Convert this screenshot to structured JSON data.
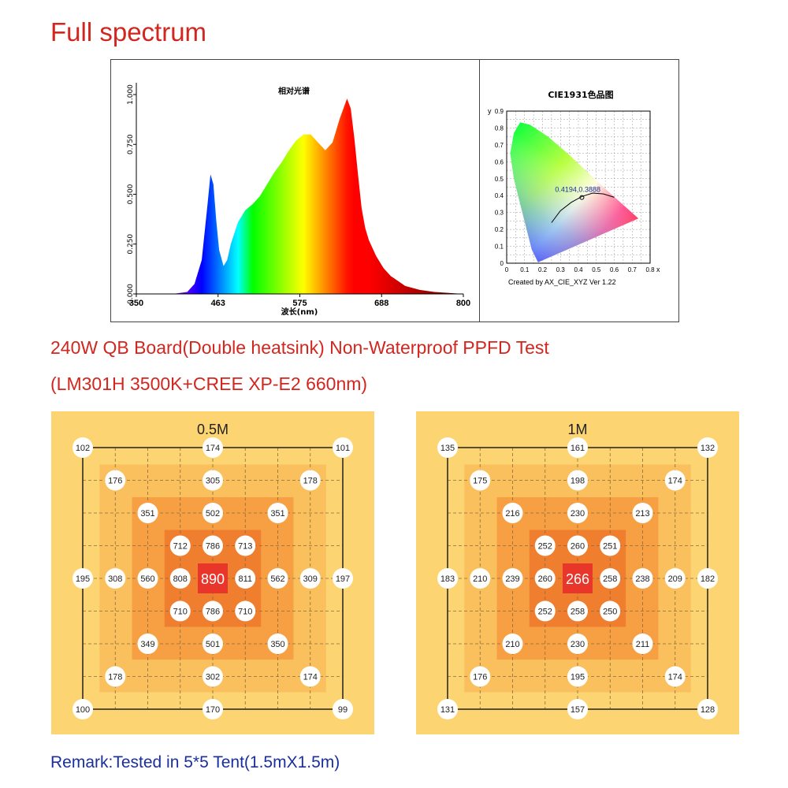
{
  "page": {
    "title": "Full spectrum",
    "test_line1": "240W QB Board(Double heatsink) Non-Waterproof PPFD Test",
    "test_line2": "(LM301H 3500K+CREE XP-E2 660nm)",
    "remark": "Remark:Tested in 5*5 Tent(1.5mX1.5m)"
  },
  "chart_data": [
    {
      "type": "area",
      "title": "相对光谱",
      "xlabel": "波长(nm)",
      "ylabel": "",
      "x_ticks": [
        "350",
        "463",
        "575",
        "688",
        "800"
      ],
      "y_ticks": [
        "0.000",
        "0.250",
        "0.500",
        "0.750",
        "1.000"
      ],
      "xlim": [
        350,
        800
      ],
      "ylim": [
        0,
        1
      ],
      "series": [
        {
          "x": [
            350,
            400,
            420,
            430,
            440,
            448,
            452,
            456,
            460,
            464,
            470,
            475,
            480,
            490,
            500,
            510,
            520,
            530,
            540,
            550,
            560,
            570,
            580,
            590,
            600,
            610,
            620,
            630,
            640,
            645,
            650,
            655,
            660,
            665,
            670,
            680,
            690,
            700,
            720,
            740,
            760,
            800
          ],
          "y": [
            0.0,
            0.0,
            0.01,
            0.05,
            0.17,
            0.45,
            0.6,
            0.55,
            0.37,
            0.22,
            0.14,
            0.17,
            0.25,
            0.36,
            0.42,
            0.45,
            0.49,
            0.55,
            0.61,
            0.66,
            0.72,
            0.77,
            0.8,
            0.8,
            0.76,
            0.72,
            0.76,
            0.88,
            0.98,
            0.93,
            0.78,
            0.6,
            0.43,
            0.33,
            0.27,
            0.19,
            0.13,
            0.09,
            0.04,
            0.02,
            0.01,
            0.0
          ]
        }
      ]
    },
    {
      "type": "scatter",
      "title": "CIE1931色品图",
      "xlabel": "x",
      "ylabel": "y",
      "xlim": [
        0,
        0.8
      ],
      "ylim": [
        0,
        0.9
      ],
      "x_ticks": [
        "0",
        "0.1",
        "0.2",
        "0.3",
        "0.4",
        "0.5",
        "0.6",
        "0.7",
        "0.8"
      ],
      "y_ticks": [
        "0",
        "0.1",
        "0.2",
        "0.3",
        "0.4",
        "0.5",
        "0.6",
        "0.7",
        "0.8",
        "0.9"
      ],
      "point": {
        "x": 0.4194,
        "y": 0.3888,
        "label": "0.4194,0.3888"
      },
      "footer": "Created by AX_CIE_XYZ Ver 1.22"
    },
    {
      "type": "heatmap",
      "title": "0.5M",
      "max_value": "890",
      "points": [
        {
          "row": 0,
          "col": 0,
          "value": "102"
        },
        {
          "row": 0,
          "col": 4,
          "value": "174"
        },
        {
          "row": 0,
          "col": 8,
          "value": "101"
        },
        {
          "row": 1,
          "col": 1,
          "value": "176"
        },
        {
          "row": 1,
          "col": 4,
          "value": "305"
        },
        {
          "row": 1,
          "col": 7,
          "value": "178"
        },
        {
          "row": 2,
          "col": 2,
          "value": "351"
        },
        {
          "row": 2,
          "col": 4,
          "value": "502"
        },
        {
          "row": 2,
          "col": 6,
          "value": "351"
        },
        {
          "row": 3,
          "col": 3,
          "value": "712"
        },
        {
          "row": 3,
          "col": 4,
          "value": "786"
        },
        {
          "row": 3,
          "col": 5,
          "value": "713"
        },
        {
          "row": 4,
          "col": 0,
          "value": "195"
        },
        {
          "row": 4,
          "col": 1,
          "value": "308"
        },
        {
          "row": 4,
          "col": 2,
          "value": "560"
        },
        {
          "row": 4,
          "col": 3,
          "value": "808"
        },
        {
          "row": 4,
          "col": 5,
          "value": "811"
        },
        {
          "row": 4,
          "col": 6,
          "value": "562"
        },
        {
          "row": 4,
          "col": 7,
          "value": "309"
        },
        {
          "row": 4,
          "col": 8,
          "value": "197"
        },
        {
          "row": 5,
          "col": 3,
          "value": "710"
        },
        {
          "row": 5,
          "col": 4,
          "value": "786"
        },
        {
          "row": 5,
          "col": 5,
          "value": "710"
        },
        {
          "row": 6,
          "col": 2,
          "value": "349"
        },
        {
          "row": 6,
          "col": 4,
          "value": "501"
        },
        {
          "row": 6,
          "col": 6,
          "value": "350"
        },
        {
          "row": 7,
          "col": 1,
          "value": "178"
        },
        {
          "row": 7,
          "col": 4,
          "value": "302"
        },
        {
          "row": 7,
          "col": 7,
          "value": "174"
        },
        {
          "row": 8,
          "col": 0,
          "value": "100"
        },
        {
          "row": 8,
          "col": 4,
          "value": "170"
        },
        {
          "row": 8,
          "col": 8,
          "value": "99"
        }
      ]
    },
    {
      "type": "heatmap",
      "title": "1M",
      "max_value": "266",
      "points": [
        {
          "row": 0,
          "col": 0,
          "value": "135"
        },
        {
          "row": 0,
          "col": 4,
          "value": "161"
        },
        {
          "row": 0,
          "col": 8,
          "value": "132"
        },
        {
          "row": 1,
          "col": 1,
          "value": "175"
        },
        {
          "row": 1,
          "col": 4,
          "value": "198"
        },
        {
          "row": 1,
          "col": 7,
          "value": "174"
        },
        {
          "row": 2,
          "col": 2,
          "value": "216"
        },
        {
          "row": 2,
          "col": 4,
          "value": "230"
        },
        {
          "row": 2,
          "col": 6,
          "value": "213"
        },
        {
          "row": 3,
          "col": 3,
          "value": "252"
        },
        {
          "row": 3,
          "col": 4,
          "value": "260"
        },
        {
          "row": 3,
          "col": 5,
          "value": "251"
        },
        {
          "row": 4,
          "col": 0,
          "value": "183"
        },
        {
          "row": 4,
          "col": 1,
          "value": "210"
        },
        {
          "row": 4,
          "col": 2,
          "value": "239"
        },
        {
          "row": 4,
          "col": 3,
          "value": "260"
        },
        {
          "row": 4,
          "col": 5,
          "value": "258"
        },
        {
          "row": 4,
          "col": 6,
          "value": "238"
        },
        {
          "row": 4,
          "col": 7,
          "value": "209"
        },
        {
          "row": 4,
          "col": 8,
          "value": "182"
        },
        {
          "row": 5,
          "col": 3,
          "value": "252"
        },
        {
          "row": 5,
          "col": 4,
          "value": "258"
        },
        {
          "row": 5,
          "col": 5,
          "value": "250"
        },
        {
          "row": 6,
          "col": 2,
          "value": "210"
        },
        {
          "row": 6,
          "col": 4,
          "value": "230"
        },
        {
          "row": 6,
          "col": 6,
          "value": "211"
        },
        {
          "row": 7,
          "col": 1,
          "value": "176"
        },
        {
          "row": 7,
          "col": 4,
          "value": "195"
        },
        {
          "row": 7,
          "col": 7,
          "value": "174"
        },
        {
          "row": 8,
          "col": 0,
          "value": "131"
        },
        {
          "row": 8,
          "col": 4,
          "value": "157"
        },
        {
          "row": 8,
          "col": 8,
          "value": "128"
        }
      ]
    }
  ],
  "colors": {
    "title_red": "#d2261f",
    "remark_blue": "#1a2f9c",
    "zone_outer": "#fdd472",
    "zone_2": "#fbc05e",
    "zone_3": "#f7a043",
    "zone_4": "#ef7e2e",
    "center_box": "#e8362a"
  }
}
